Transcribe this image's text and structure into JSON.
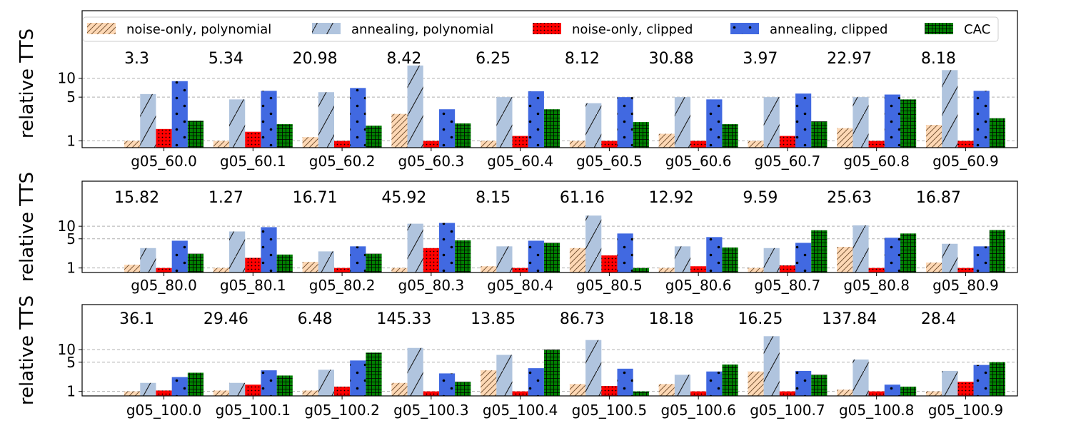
{
  "chart_data": {
    "type": "bar",
    "scale": "log",
    "grid": "horizontal dashed",
    "legend_placement": "top",
    "series": [
      {
        "name": "noise-only, polynomial",
        "color": "#fdd8b5",
        "hatch": "diagonal-lines"
      },
      {
        "name": "annealing, polynomial",
        "color": "#b0c4de",
        "hatch": "slash"
      },
      {
        "name": "noise-only, clipped",
        "color": "#ff0000",
        "hatch": "small-dots"
      },
      {
        "name": "annealing, clipped",
        "color": "#4169e1",
        "hatch": "large-dots"
      },
      {
        "name": "CAC",
        "color": "#008000",
        "hatch": "grid"
      }
    ],
    "ytick_labels": [
      "1",
      "5",
      "10"
    ],
    "ytick_values": [
      1,
      5,
      10
    ],
    "panels": [
      {
        "ylabel": "relative TTS",
        "ylim": [
          0.78,
          120
        ],
        "categories": [
          "g05_60.0",
          "g05_60.1",
          "g05_60.2",
          "g05_60.3",
          "g05_60.4",
          "g05_60.5",
          "g05_60.6",
          "g05_60.7",
          "g05_60.8",
          "g05_60.9"
        ],
        "annotations": [
          "3.3",
          "5.34",
          "20.98",
          "8.42",
          "6.25",
          "8.12",
          "30.88",
          "3.97",
          "22.97",
          "8.18"
        ],
        "values": [
          [
            1.0,
            5.6,
            1.55,
            9.0,
            2.1
          ],
          [
            1.0,
            4.6,
            1.4,
            6.3,
            1.85
          ],
          [
            1.15,
            6.0,
            1.0,
            7.0,
            1.75
          ],
          [
            2.7,
            16.0,
            1.0,
            3.2,
            1.9
          ],
          [
            1.0,
            5.0,
            1.2,
            6.2,
            3.2
          ],
          [
            1.0,
            4.0,
            1.0,
            5.0,
            2.0
          ],
          [
            1.3,
            5.0,
            1.0,
            4.6,
            1.85
          ],
          [
            1.0,
            5.0,
            1.2,
            5.7,
            2.05
          ],
          [
            1.6,
            5.0,
            1.0,
            5.5,
            4.6
          ],
          [
            1.8,
            13.5,
            1.0,
            6.3,
            2.3
          ]
        ]
      },
      {
        "ylabel": "relative TTS",
        "ylim": [
          0.78,
          120
        ],
        "categories": [
          "g05_80.0",
          "g05_80.1",
          "g05_80.2",
          "g05_80.3",
          "g05_80.4",
          "g05_80.5",
          "g05_80.6",
          "g05_80.7",
          "g05_80.8",
          "g05_80.9"
        ],
        "annotations": [
          "15.82",
          "1.27",
          "16.71",
          "45.92",
          "8.15",
          "61.16",
          "12.92",
          "9.59",
          "25.63",
          "16.87"
        ],
        "values": [
          [
            1.2,
            3.0,
            1.0,
            4.5,
            2.2
          ],
          [
            1.0,
            7.5,
            1.75,
            9.5,
            2.1
          ],
          [
            1.4,
            2.5,
            1.0,
            3.3,
            2.2
          ],
          [
            1.0,
            11.5,
            3.0,
            12.0,
            4.6
          ],
          [
            1.1,
            3.3,
            1.0,
            4.5,
            4.0
          ],
          [
            3.0,
            18.0,
            2.0,
            6.7,
            1.0
          ],
          [
            1.0,
            3.3,
            1.1,
            5.5,
            3.1
          ],
          [
            1.0,
            3.0,
            1.15,
            4.0,
            8.0
          ],
          [
            3.2,
            10.5,
            1.0,
            5.3,
            6.7
          ],
          [
            1.35,
            3.8,
            1.0,
            3.3,
            8.1
          ]
        ]
      },
      {
        "ylabel": "relative TTS",
        "ylim": [
          0.78,
          120
        ],
        "categories": [
          "g05_100.0",
          "g05_100.1",
          "g05_100.2",
          "g05_100.3",
          "g05_100.4",
          "g05_100.5",
          "g05_100.6",
          "g05_100.7",
          "g05_100.8",
          "g05_100.9"
        ],
        "annotations": [
          "36.1",
          "29.46",
          "6.48",
          "145.33",
          "13.85",
          "86.73",
          "18.18",
          "16.25",
          "137.84",
          "28.4"
        ],
        "values": [
          [
            1.0,
            1.6,
            1.05,
            2.2,
            2.8
          ],
          [
            1.05,
            1.6,
            1.45,
            3.2,
            2.4
          ],
          [
            1.05,
            3.3,
            1.3,
            5.5,
            8.5
          ],
          [
            1.6,
            11.0,
            1.0,
            2.7,
            1.7
          ],
          [
            3.2,
            7.5,
            1.0,
            3.6,
            10.0
          ],
          [
            1.5,
            17.0,
            1.35,
            3.5,
            1.0
          ],
          [
            1.5,
            2.5,
            1.0,
            3.0,
            4.4
          ],
          [
            3.0,
            21.0,
            1.0,
            3.1,
            2.5
          ],
          [
            1.1,
            5.8,
            1.0,
            1.45,
            1.3
          ],
          [
            1.0,
            3.1,
            1.7,
            4.3,
            5.0
          ]
        ]
      }
    ]
  }
}
